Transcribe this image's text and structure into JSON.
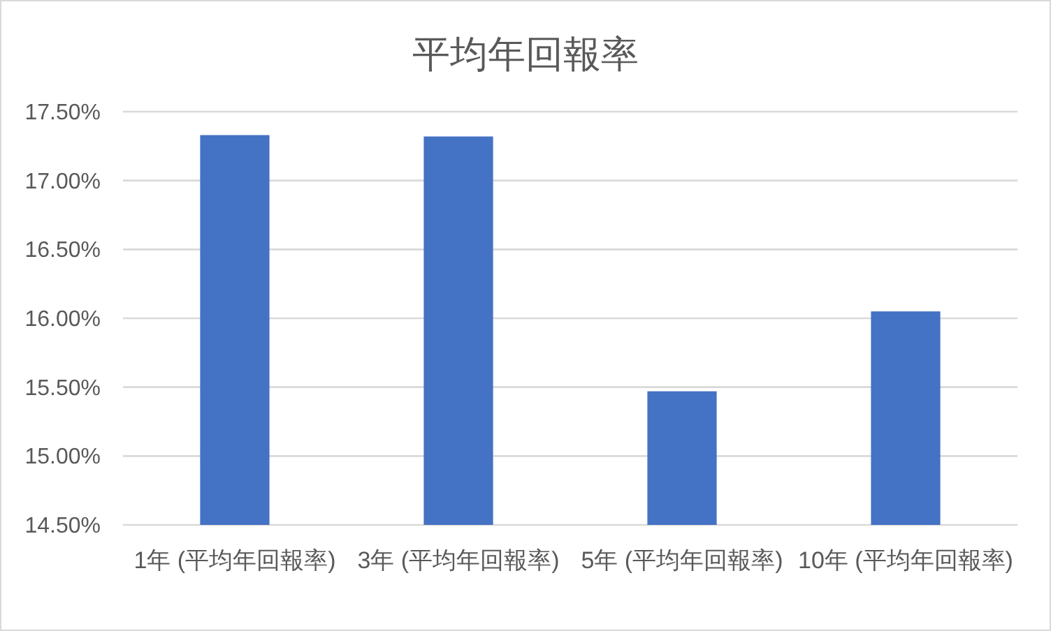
{
  "chart_data": {
    "type": "bar",
    "title": "平均年回報率",
    "categories": [
      "1年 (平均年回報率)",
      "3年 (平均年回報率)",
      "5年 (平均年回報率)",
      "10年 (平均年回報率)"
    ],
    "values": [
      17.33,
      17.32,
      15.47,
      16.05
    ],
    "color": "#4472c4",
    "ylim": [
      14.5,
      17.5
    ],
    "yticks": [
      {
        "value": 14.5,
        "label": "14.50%"
      },
      {
        "value": 15,
        "label": "15.00%"
      },
      {
        "value": 15.5,
        "label": "15.50%"
      },
      {
        "value": 16,
        "label": "16.00%"
      },
      {
        "value": 16.5,
        "label": "16.50%"
      },
      {
        "value": 17,
        "label": "17.00%"
      },
      {
        "value": 17.5,
        "label": "17.50%"
      }
    ],
    "grid": "y"
  }
}
